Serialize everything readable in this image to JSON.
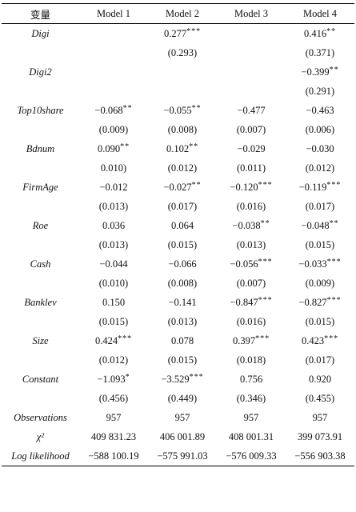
{
  "table": {
    "header": [
      "变量",
      "Model 1",
      "Model 2",
      "Model 3",
      "Model 4"
    ],
    "rows": [
      {
        "label": "Digi",
        "coef": [
          null,
          {
            "text": "0.277",
            "stars": "***"
          },
          null,
          {
            "text": "0.416",
            "stars": "**"
          }
        ],
        "se": [
          null,
          "(0.293)",
          null,
          "(0.371)"
        ]
      },
      {
        "label": "Digi2",
        "coef": [
          null,
          null,
          null,
          {
            "text": "−0.399",
            "stars": "**"
          }
        ],
        "se": [
          null,
          null,
          null,
          "(0.291)"
        ]
      },
      {
        "label": "Top10share",
        "coef": [
          {
            "text": "−0.068",
            "stars": "**"
          },
          {
            "text": "−0.055",
            "stars": "**"
          },
          "−0.477",
          "−0.463"
        ],
        "se": [
          "(0.009)",
          "(0.008)",
          "(0.007)",
          "(0.006)"
        ]
      },
      {
        "label": "Bdnum",
        "coef": [
          {
            "text": "0.090",
            "stars": "**"
          },
          {
            "text": "0.102",
            "stars": "**"
          },
          "−0.029",
          "−0.030"
        ],
        "se": [
          "0.010)",
          "(0.012)",
          "(0.011)",
          "(0.012)"
        ]
      },
      {
        "label": "FirmAge",
        "coef": [
          "−0.012",
          {
            "text": "−0.027",
            "stars": "**"
          },
          {
            "text": "−0.120",
            "stars": "***"
          },
          {
            "text": "−0.119",
            "stars": "***"
          }
        ],
        "se": [
          "(0.013)",
          "(0.017)",
          "(0.016)",
          "(0.017)"
        ]
      },
      {
        "label": "Roe",
        "coef": [
          "0.036",
          "0.064",
          {
            "text": "−0.038",
            "stars": "**"
          },
          {
            "text": "−0.048",
            "stars": "**"
          }
        ],
        "se": [
          "(0.013)",
          "(0.015)",
          "(0.013)",
          "(0.015)"
        ]
      },
      {
        "label": "Cash",
        "coef": [
          "−0.044",
          "−0.066",
          {
            "text": "−0.056",
            "stars": "***"
          },
          {
            "text": "−0.033",
            "stars": "***"
          }
        ],
        "se": [
          "(0.010)",
          "(0.008)",
          "(0.007)",
          "(0.009)"
        ]
      },
      {
        "label": "Banklev",
        "coef": [
          "0.150",
          "−0.141",
          {
            "text": "−0.847",
            "stars": "***"
          },
          {
            "text": "−0.827",
            "stars": "***"
          }
        ],
        "se": [
          "(0.015)",
          "(0.013)",
          "(0.016)",
          "(0.015)"
        ]
      },
      {
        "label": "Size",
        "coef": [
          {
            "text": "0.424",
            "stars": "***"
          },
          "0.078",
          {
            "text": "0.397",
            "stars": "***"
          },
          {
            "text": "0.423",
            "stars": "***"
          }
        ],
        "se": [
          "(0.012)",
          "(0.015)",
          "(0.018)",
          "(0.017)"
        ]
      },
      {
        "label": "Constant",
        "coef": [
          {
            "text": "−1.093",
            "stars": "*"
          },
          {
            "text": "−3.529",
            "stars": "***"
          },
          "0.756",
          "0.920"
        ],
        "se": [
          "(0.456)",
          "(0.449)",
          "(0.346)",
          "(0.455)"
        ]
      }
    ],
    "stats": [
      {
        "label": "Observations",
        "cells": [
          "957",
          "957",
          "957",
          "957"
        ]
      },
      {
        "label": "χ²",
        "cells": [
          "409 831.23",
          "406 001.89",
          "408 001.31",
          "399 073.91"
        ]
      },
      {
        "label": "Log likelihood",
        "cells": [
          "−588 100.19",
          "−575 991.03",
          "−576 009.33",
          "−556 903.38"
        ]
      }
    ]
  }
}
